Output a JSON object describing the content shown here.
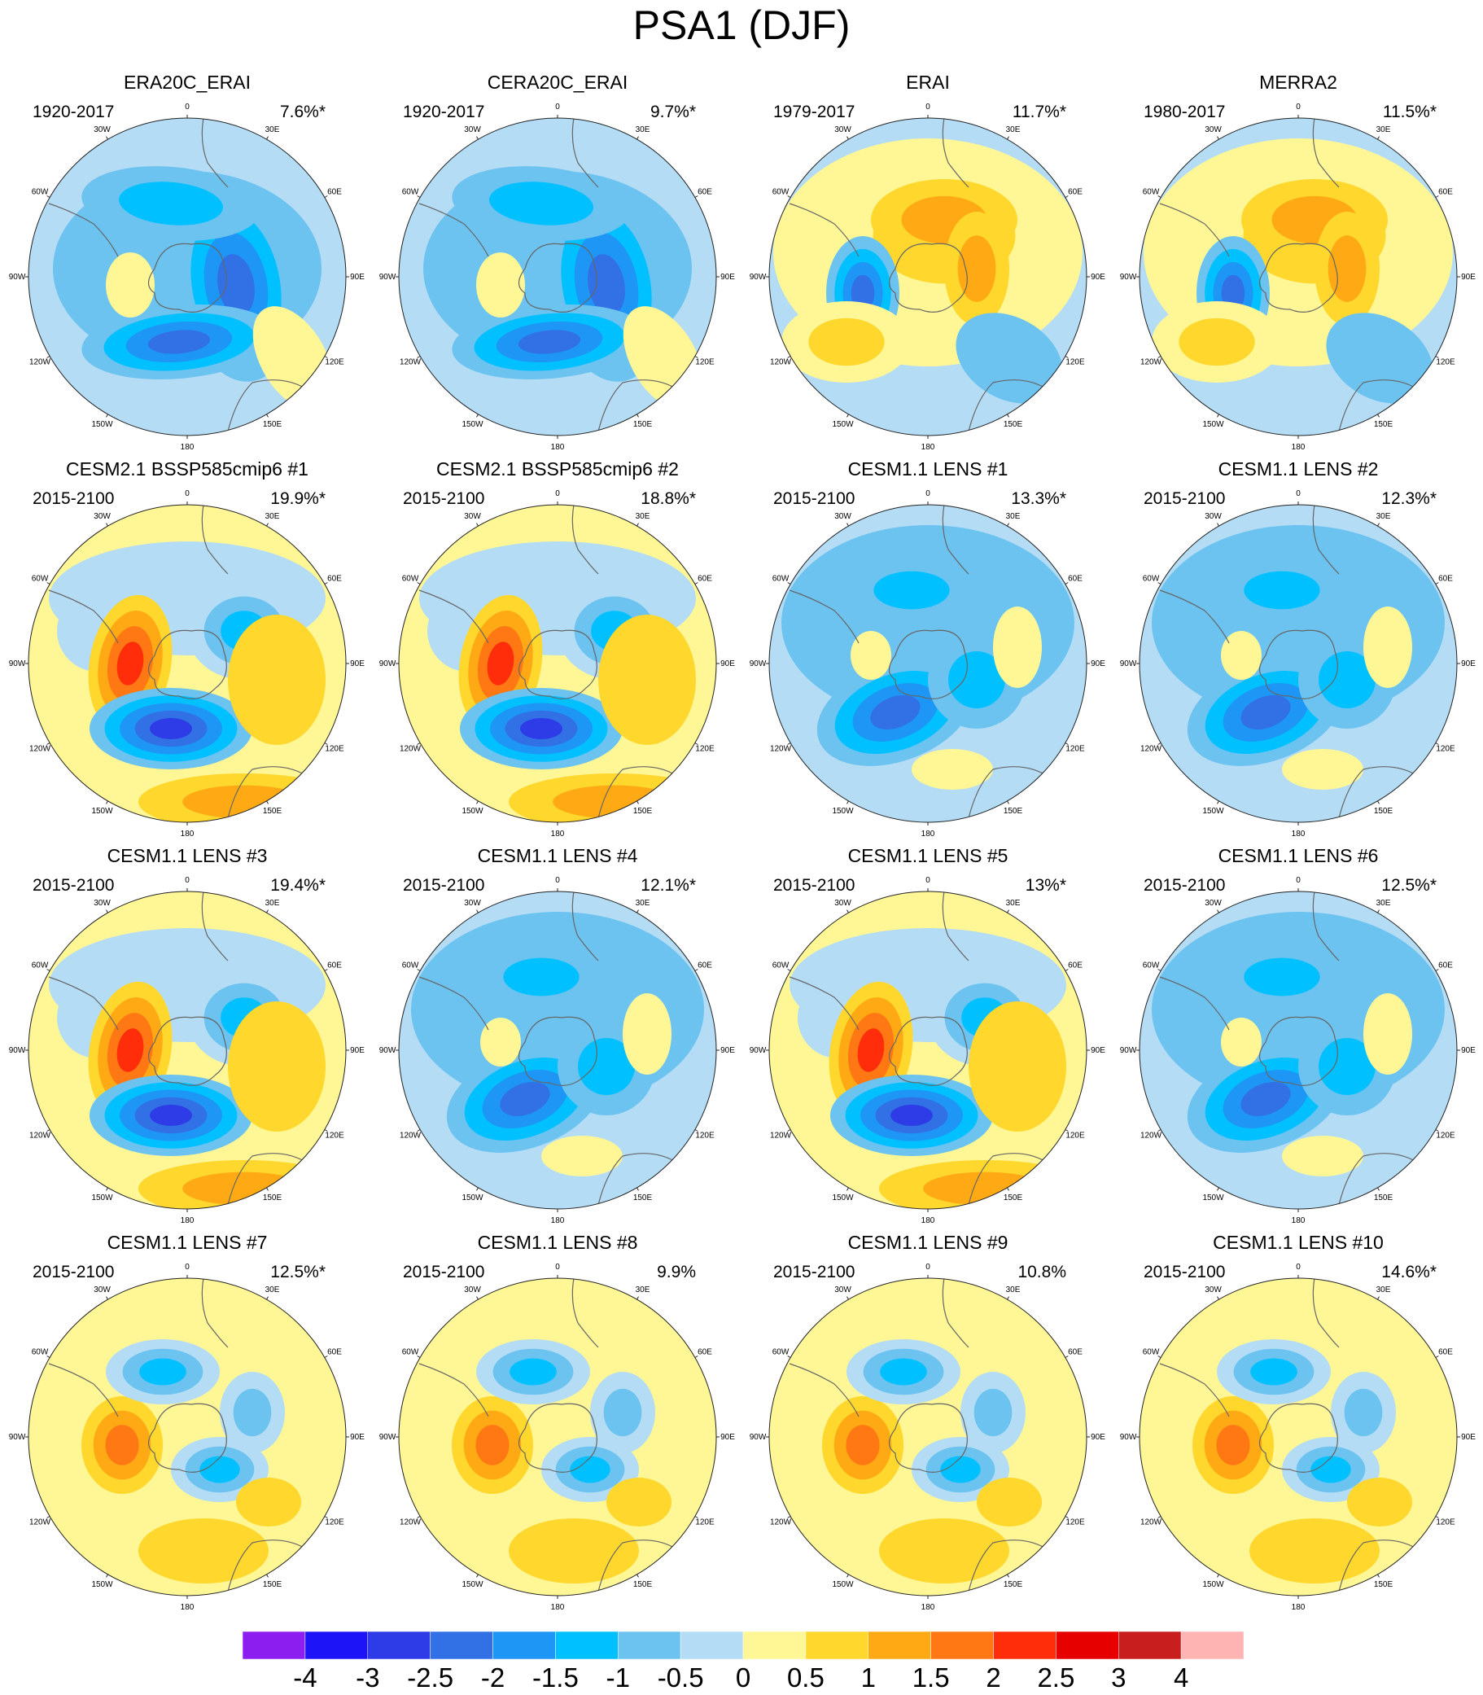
{
  "title": "PSA1 (DJF)",
  "panels": [
    {
      "title": "ERA20C_ERAI",
      "period": "1920-2017",
      "pct": "7.6%*",
      "pattern": "neg_ring"
    },
    {
      "title": "CERA20C_ERAI",
      "period": "1920-2017",
      "pct": "9.7%*",
      "pattern": "neg_ring"
    },
    {
      "title": "ERAI",
      "period": "1979-2017",
      "pct": "11.7%*",
      "pattern": "pos_ring"
    },
    {
      "title": "MERRA2",
      "period": "1980-2017",
      "pct": "11.5%*",
      "pattern": "pos_ring"
    },
    {
      "title": "CESM2.1 BSSP585cmip6 #1",
      "period": "2015-2100",
      "pct": "19.9%*",
      "pattern": "wave_red"
    },
    {
      "title": "CESM2.1 BSSP585cmip6 #2",
      "period": "2015-2100",
      "pct": "18.8%*",
      "pattern": "wave_red"
    },
    {
      "title": "CESM1.1 LENS #1",
      "period": "2015-2100",
      "pct": "13.3%*",
      "pattern": "blue_mix"
    },
    {
      "title": "CESM1.1 LENS #2",
      "period": "2015-2100",
      "pct": "12.3%*",
      "pattern": "blue_mix"
    },
    {
      "title": "CESM1.1 LENS #3",
      "period": "2015-2100",
      "pct": "19.4%*",
      "pattern": "wave_red"
    },
    {
      "title": "CESM1.1 LENS #4",
      "period": "2015-2100",
      "pct": "12.1%*",
      "pattern": "blue_mix"
    },
    {
      "title": "CESM1.1 LENS #5",
      "period": "2015-2100",
      "pct": "13%*",
      "pattern": "wave_red"
    },
    {
      "title": "CESM1.1 LENS #6",
      "period": "2015-2100",
      "pct": "12.5%*",
      "pattern": "blue_mix"
    },
    {
      "title": "CESM1.1 LENS #7",
      "period": "2015-2100",
      "pct": "12.5%*",
      "pattern": "warm_mix"
    },
    {
      "title": "CESM1.1 LENS #8",
      "period": "2015-2100",
      "pct": "9.9%",
      "pattern": "warm_mix"
    },
    {
      "title": "CESM1.1 LENS #9",
      "period": "2015-2100",
      "pct": "10.8%",
      "pattern": "warm_mix"
    },
    {
      "title": "CESM1.1 LENS #10",
      "period": "2015-2100",
      "pct": "14.6%*",
      "pattern": "warm_mix"
    }
  ],
  "lon_labels": [
    "0",
    "30E",
    "60E",
    "90E",
    "120E",
    "150E",
    "180",
    "150W",
    "120W",
    "90W",
    "60W",
    "30W"
  ],
  "colorbar": {
    "labels": [
      "-4",
      "-3",
      "-2.5",
      "-2",
      "-1.5",
      "-1",
      "-0.5",
      "0",
      "0.5",
      "1",
      "1.5",
      "2",
      "2.5",
      "3",
      "4"
    ],
    "colors": [
      "#8c1ff0",
      "#1e14f8",
      "#2d3ce6",
      "#3270e6",
      "#1e96f5",
      "#00c0ff",
      "#6cc3f0",
      "#b4dcf5",
      "#fff696",
      "#ffd72d",
      "#ffaa14",
      "#ff7814",
      "#ff2d0a",
      "#e60000",
      "#c81e1e",
      "#ffb4b4"
    ]
  }
}
